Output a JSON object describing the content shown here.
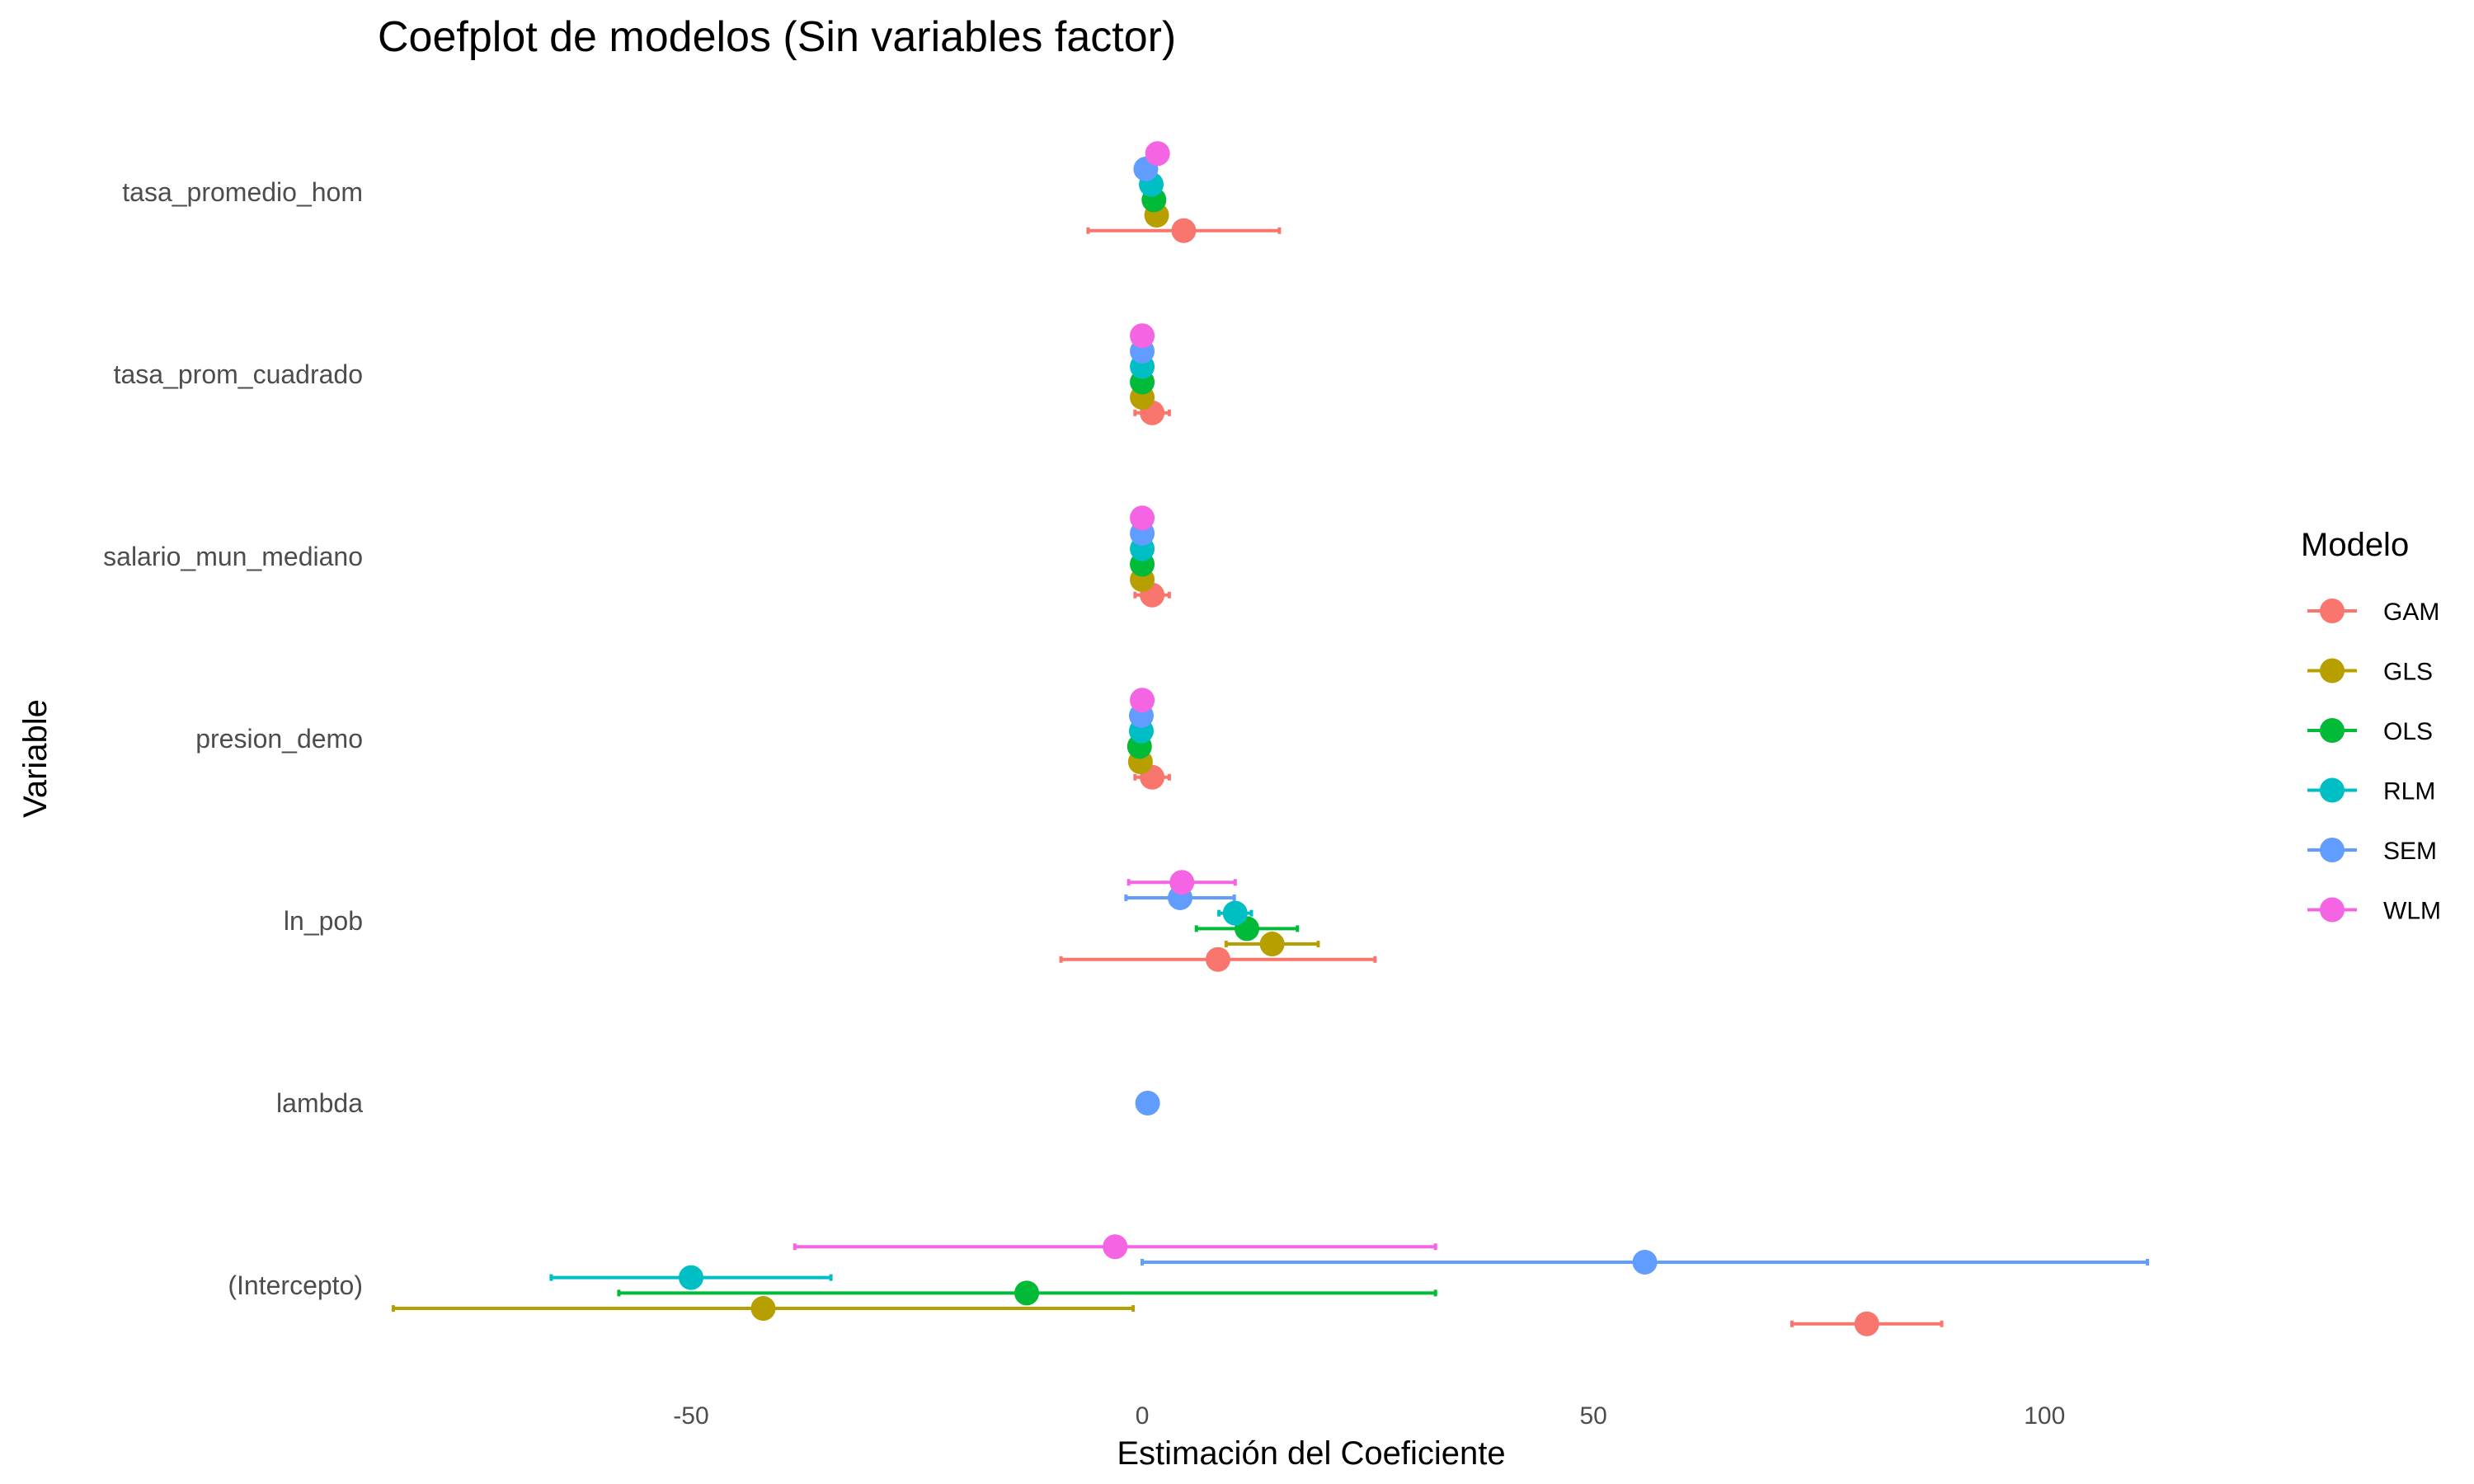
{
  "chart_data": {
    "type": "coefplot",
    "title": "Coefplot de modelos (Sin variables factor)",
    "xlabel": "Estimación del Coeficiente",
    "ylabel": "Variable",
    "xlim": [
      -85,
      122
    ],
    "x_ticks": [
      "-50",
      "0",
      "50",
      "100"
    ],
    "x_tick_values": [
      -50,
      0,
      50,
      100
    ],
    "grid": false,
    "legend_position": "right",
    "legend_title": "Modelo",
    "variables": [
      "tasa_promedio_hom",
      "tasa_prom_cuadrado",
      "salario_mun_mediano",
      "presion_demo",
      "ln_pob",
      "lambda",
      "(Intercepto)"
    ],
    "series": [
      {
        "name": "GAM",
        "color": "#F8766D",
        "points": [
          {
            "variable": "tasa_promedio_hom",
            "estimate": 4.6,
            "low": -6.0,
            "high": 15.2
          },
          {
            "variable": "tasa_prom_cuadrado",
            "estimate": 1.1,
            "low": -0.8,
            "high": 3.0
          },
          {
            "variable": "salario_mun_mediano",
            "estimate": 1.1,
            "low": -0.8,
            "high": 3.0
          },
          {
            "variable": "presion_demo",
            "estimate": 1.1,
            "low": -0.8,
            "high": 3.0
          },
          {
            "variable": "ln_pob",
            "estimate": 8.4,
            "low": -9.0,
            "high": 25.8
          },
          {
            "variable": "(Intercepto)",
            "estimate": 80.3,
            "low": 72.0,
            "high": 88.6
          }
        ]
      },
      {
        "name": "GLS",
        "color": "#B79F00",
        "points": [
          {
            "variable": "tasa_promedio_hom",
            "estimate": 1.6,
            "low": 1.1,
            "high": 2.1
          },
          {
            "variable": "tasa_prom_cuadrado",
            "estimate": 0.0,
            "low": -0.2,
            "high": 0.2
          },
          {
            "variable": "salario_mun_mediano",
            "estimate": 0.0,
            "low": -0.2,
            "high": 0.2
          },
          {
            "variable": "presion_demo",
            "estimate": -0.2,
            "low": -0.5,
            "high": 0.1
          },
          {
            "variable": "ln_pob",
            "estimate": 14.4,
            "low": 9.3,
            "high": 19.5
          },
          {
            "variable": "(Intercepto)",
            "estimate": -42.0,
            "low": -83.0,
            "high": -1.0
          }
        ]
      },
      {
        "name": "OLS",
        "color": "#00BA38",
        "points": [
          {
            "variable": "tasa_promedio_hom",
            "estimate": 1.3,
            "low": 0.9,
            "high": 1.7
          },
          {
            "variable": "tasa_prom_cuadrado",
            "estimate": 0.0,
            "low": -0.2,
            "high": 0.2
          },
          {
            "variable": "salario_mun_mediano",
            "estimate": 0.0,
            "low": -0.2,
            "high": 0.2
          },
          {
            "variable": "presion_demo",
            "estimate": -0.3,
            "low": -0.6,
            "high": 0.0
          },
          {
            "variable": "ln_pob",
            "estimate": 11.6,
            "low": 6.0,
            "high": 17.2
          },
          {
            "variable": "(Intercepto)",
            "estimate": -12.8,
            "low": -58.0,
            "high": 32.5
          }
        ]
      },
      {
        "name": "RLM",
        "color": "#00BFC4",
        "points": [
          {
            "variable": "tasa_promedio_hom",
            "estimate": 1.0,
            "low": 0.6,
            "high": 1.4
          },
          {
            "variable": "tasa_prom_cuadrado",
            "estimate": 0.0,
            "low": -0.2,
            "high": 0.2
          },
          {
            "variable": "salario_mun_mediano",
            "estimate": 0.0,
            "low": -0.2,
            "high": 0.2
          },
          {
            "variable": "presion_demo",
            "estimate": -0.1,
            "low": -0.4,
            "high": 0.2
          },
          {
            "variable": "ln_pob",
            "estimate": 10.3,
            "low": 8.5,
            "high": 12.1
          },
          {
            "variable": "(Intercepto)",
            "estimate": -50.0,
            "low": -65.5,
            "high": -34.5
          }
        ]
      },
      {
        "name": "SEM",
        "color": "#619CFF",
        "points": [
          {
            "variable": "tasa_promedio_hom",
            "estimate": 0.4,
            "low": 0.0,
            "high": 0.8
          },
          {
            "variable": "tasa_prom_cuadrado",
            "estimate": 0.0,
            "low": -0.2,
            "high": 0.2
          },
          {
            "variable": "salario_mun_mediano",
            "estimate": 0.0,
            "low": -0.2,
            "high": 0.2
          },
          {
            "variable": "presion_demo",
            "estimate": -0.1,
            "low": -0.4,
            "high": 0.2
          },
          {
            "variable": "ln_pob",
            "estimate": 4.2,
            "low": -1.8,
            "high": 10.2
          },
          {
            "variable": "lambda",
            "estimate": 0.6,
            "low": 0.4,
            "high": 0.8
          },
          {
            "variable": "(Intercepto)",
            "estimate": 55.7,
            "low": 0.0,
            "high": 111.4
          }
        ]
      },
      {
        "name": "WLM",
        "color": "#F564E3",
        "points": [
          {
            "variable": "tasa_promedio_hom",
            "estimate": 1.7,
            "low": 1.3,
            "high": 2.1
          },
          {
            "variable": "tasa_prom_cuadrado",
            "estimate": 0.0,
            "low": -0.2,
            "high": 0.2
          },
          {
            "variable": "salario_mun_mediano",
            "estimate": 0.0,
            "low": -0.2,
            "high": 0.2
          },
          {
            "variable": "presion_demo",
            "estimate": 0.0,
            "low": -0.3,
            "high": 0.3
          },
          {
            "variable": "ln_pob",
            "estimate": 4.4,
            "low": -1.5,
            "high": 10.3
          },
          {
            "variable": "(Intercepto)",
            "estimate": -3.0,
            "low": -38.5,
            "high": 32.5
          }
        ]
      }
    ]
  }
}
